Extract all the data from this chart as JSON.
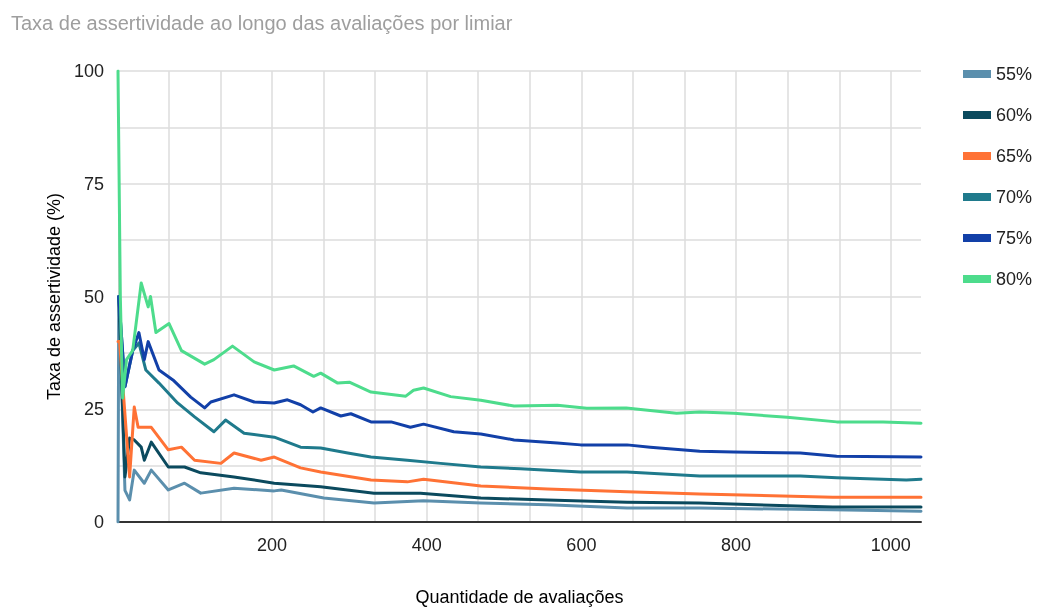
{
  "chart_data": {
    "type": "line",
    "title": "Taxa de assertividade ao longo das avaliações por limiar",
    "xlabel": "Quantidade de avaliações",
    "ylabel": "Taxa de assertividade (%)",
    "xlim": [
      1,
      1039
    ],
    "xticks": [
      {
        "value": 66.67,
        "label": null
      },
      {
        "value": 133.33,
        "label": null
      },
      200,
      {
        "value": 266.67,
        "label": null
      },
      {
        "value": 333.33,
        "label": null
      },
      400,
      {
        "value": 466.67,
        "label": null
      },
      {
        "value": 533.33,
        "label": null
      },
      600,
      {
        "value": 666.67,
        "label": null
      },
      {
        "value": 733.33,
        "label": null
      },
      800,
      {
        "value": 866.67,
        "label": null
      },
      {
        "value": 933.33,
        "label": null
      },
      1000
    ],
    "ylim": [
      0,
      100
    ],
    "yticks": [
      0,
      {
        "value": 12.5,
        "label": null
      },
      25,
      {
        "value": 37.5,
        "label": null
      },
      50,
      {
        "value": 62.5,
        "label": null
      },
      75,
      {
        "value": 87.5,
        "label": null
      },
      100
    ],
    "grid": true,
    "legend": "right",
    "marker": "none",
    "line_style": "solid",
    "series": [
      {
        "name": "55%",
        "color": "#5b8fad",
        "x": [
          1,
          2,
          10,
          16,
          22,
          35,
          44,
          66,
          87,
          108,
          151,
          203,
          212,
          267,
          332,
          396,
          470,
          556,
          659,
          753,
          925,
          1039
        ],
        "values": [
          0,
          50,
          7,
          4.9,
          11.5,
          8.6,
          11.5,
          7.1,
          8.6,
          6.4,
          7.5,
          6.9,
          7.1,
          5.3,
          4.2,
          4.7,
          4.2,
          3.8,
          3.1,
          3.1,
          2.7,
          2.4
        ]
      },
      {
        "name": "60%",
        "color": "#0b4a5e",
        "x": [
          2,
          10,
          16,
          22,
          31,
          35,
          44,
          66,
          87,
          108,
          151,
          203,
          263,
          332,
          392,
          470,
          556,
          659,
          753,
          925,
          1039
        ],
        "values": [
          50,
          10,
          18.6,
          18.2,
          16.6,
          13.7,
          17.7,
          12.2,
          12.2,
          10.9,
          10,
          8.6,
          7.8,
          6.4,
          6.4,
          5.3,
          4.9,
          4.4,
          4.2,
          3.3,
          3.3
        ]
      },
      {
        "name": "65%",
        "color": "#ff7235",
        "x": [
          1,
          3,
          16,
          22,
          27,
          44,
          66,
          83,
          100,
          134,
          151,
          186,
          203,
          237,
          263,
          328,
          375,
          396,
          470,
          556,
          659,
          753,
          925,
          1039
        ],
        "values": [
          40,
          40,
          10,
          25.5,
          21,
          21,
          16,
          16.6,
          13.7,
          13,
          15.3,
          13.7,
          14.4,
          12,
          11.1,
          9.3,
          8.9,
          9.5,
          8,
          7.3,
          6.7,
          6.2,
          5.5,
          5.5
        ]
      },
      {
        "name": "70%",
        "color": "#1f7a8c",
        "x": [
          2,
          10,
          20,
          28,
          37,
          54,
          78,
          100,
          125,
          140,
          164,
          203,
          237,
          263,
          298,
          328,
          375,
          418,
          470,
          521,
          599,
          659,
          753,
          883,
          930,
          1020,
          1039
        ],
        "values": [
          50,
          30,
          38,
          39.7,
          33.7,
          30.8,
          26.4,
          23.3,
          20,
          22.6,
          19.7,
          18.8,
          16.6,
          16.4,
          15.3,
          14.4,
          13.7,
          13,
          12.2,
          11.8,
          11.1,
          11.1,
          10.2,
          10.2,
          9.8,
          9.3,
          9.5
        ]
      },
      {
        "name": "75%",
        "color": "#1240a8",
        "x": [
          2,
          10,
          20,
          28,
          35,
          40,
          54,
          72,
          95,
          113,
          121,
          151,
          177,
          203,
          220,
          237,
          253,
          263,
          289,
          302,
          328,
          354,
          379,
          396,
          435,
          470,
          513,
          569,
          599,
          659,
          689,
          753,
          797,
          883,
          930,
          1039
        ],
        "values": [
          50,
          30,
          38,
          42,
          36,
          40,
          33.7,
          31.5,
          27.7,
          25.3,
          26.6,
          28.2,
          26.6,
          26.4,
          27.1,
          26,
          24.4,
          25.3,
          23.5,
          24,
          22.2,
          22.2,
          21,
          21.7,
          20,
          19.5,
          18.2,
          17.5,
          17.1,
          17.1,
          16.6,
          15.7,
          15.5,
          15.3,
          14.6,
          14.4
        ]
      },
      {
        "name": "80%",
        "color": "#4ddc8c",
        "x": [
          1,
          4,
          7,
          12,
          20,
          31,
          40,
          43,
          50,
          67,
          83,
          113,
          125,
          149,
          177,
          203,
          228,
          254,
          263,
          285,
          300,
          328,
          373,
          383,
          396,
          431,
          470,
          513,
          569,
          607,
          658,
          723,
          753,
          797,
          866,
          930,
          990,
          1039
        ],
        "values": [
          100,
          50,
          27.5,
          36,
          38,
          53,
          47.7,
          50,
          42,
          44,
          38,
          35,
          36,
          39,
          35.5,
          33.7,
          34.6,
          32.3,
          33,
          30.8,
          31,
          28.8,
          27.9,
          29.2,
          29.7,
          27.8,
          27,
          25.7,
          25.9,
          25.2,
          25.3,
          24.1,
          24.4,
          24.1,
          23.2,
          22.2,
          22.2,
          21.9
        ]
      }
    ]
  }
}
